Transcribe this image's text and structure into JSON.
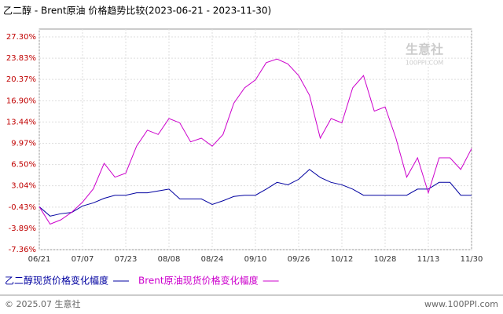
{
  "chart_data": {
    "type": "line",
    "title": "乙二醇 - Brent原油 价格趋势比较(2023-06-21 - 2023-11-30)",
    "watermark": "生意社",
    "watermark_url": "100PPI.COM",
    "footer_left": "© 2025.07 生意社",
    "footer_right": "www.100PPI.com",
    "categories": [
      "06/21",
      null,
      null,
      null,
      "07/07",
      null,
      null,
      null,
      "07/23",
      null,
      null,
      null,
      "08/08",
      null,
      null,
      null,
      "08/24",
      null,
      null,
      null,
      "09/10",
      null,
      null,
      null,
      "09/26",
      null,
      null,
      null,
      "10/12",
      null,
      null,
      null,
      "10/28",
      null,
      null,
      null,
      "11/13",
      null,
      null,
      null,
      "11/30"
    ],
    "ylim": [
      -7.36,
      27.3
    ],
    "yticks": [
      {
        "value": 27.3,
        "label": "27.30%"
      },
      {
        "value": 23.83,
        "label": "23.83%"
      },
      {
        "value": 20.37,
        "label": "20.37%"
      },
      {
        "value": 16.9,
        "label": "16.90%"
      },
      {
        "value": 13.44,
        "label": "13.44%"
      },
      {
        "value": 9.97,
        "label": "9.97%"
      },
      {
        "value": 6.5,
        "label": "6.50%"
      },
      {
        "value": 3.04,
        "label": "3.04%"
      },
      {
        "value": -0.43,
        "label": "-0.43%"
      },
      {
        "value": -3.89,
        "label": "-3.89%"
      },
      {
        "value": -7.36,
        "label": "-7.36%"
      }
    ],
    "grid": true,
    "series": [
      {
        "name": "乙二醇现货价格变化幅度",
        "color": "#0000a0",
        "values": [
          -0.38,
          -1.9,
          -1.5,
          -1.3,
          -0.25,
          0.26,
          1.0,
          1.5,
          1.5,
          1.9,
          1.9,
          2.2,
          2.5,
          0.9,
          0.9,
          0.9,
          0.0,
          0.6,
          1.3,
          1.5,
          1.5,
          2.5,
          3.6,
          3.2,
          4.1,
          5.7,
          4.4,
          3.6,
          3.2,
          2.5,
          1.5,
          1.5,
          1.5,
          1.5,
          1.5,
          2.5,
          2.5,
          3.6,
          3.6,
          1.5,
          1.5
        ]
      },
      {
        "name": "Brent原油现货价格变化幅度",
        "color": "#cc00cc",
        "values": [
          -0.38,
          -3.2,
          -2.5,
          -1.27,
          0.38,
          2.54,
          6.7,
          4.45,
          5.1,
          9.5,
          12.1,
          11.4,
          14.0,
          13.3,
          10.2,
          10.8,
          9.5,
          11.4,
          16.5,
          19.0,
          20.3,
          23.1,
          23.7,
          22.9,
          21.0,
          17.8,
          10.8,
          14.0,
          13.3,
          19.0,
          21.0,
          15.2,
          15.9,
          10.8,
          4.45,
          7.6,
          1.9,
          7.6,
          7.6,
          5.7,
          9.1
        ]
      }
    ]
  }
}
